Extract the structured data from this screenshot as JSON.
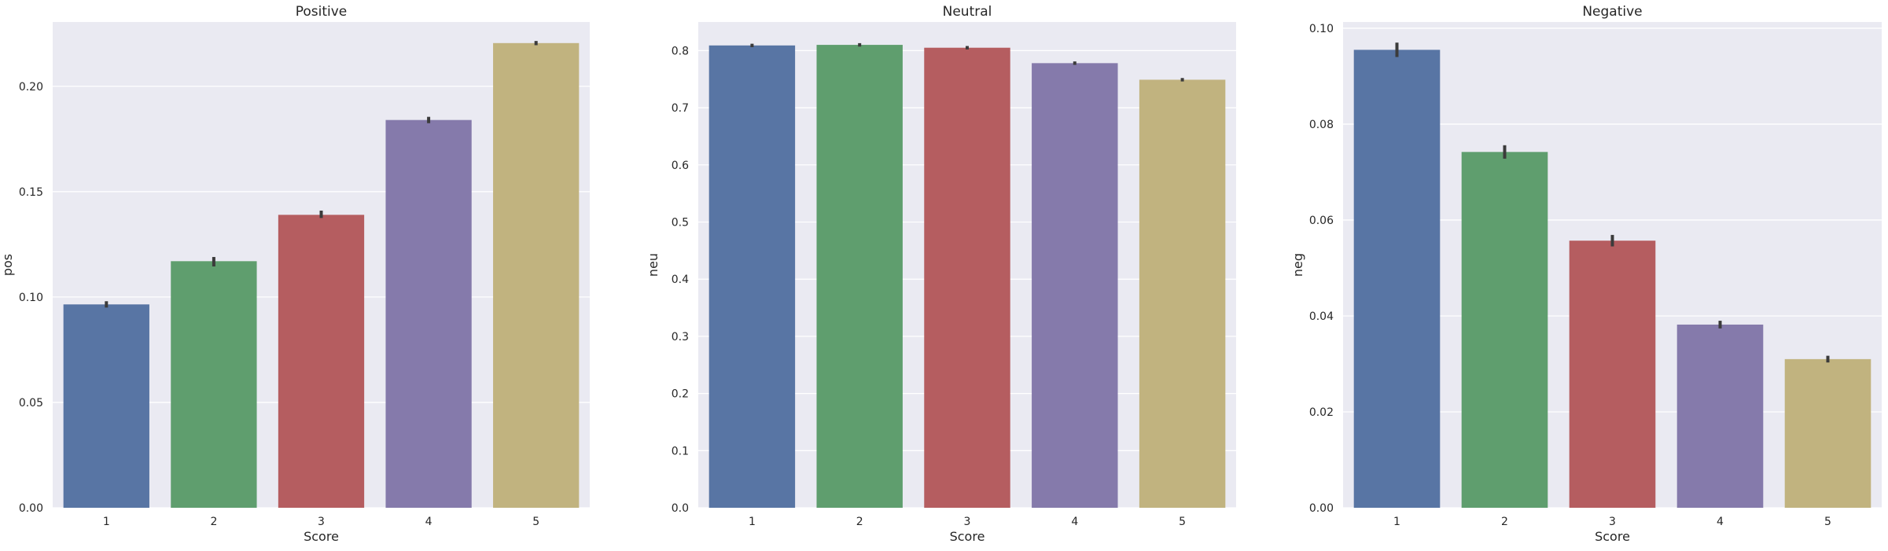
{
  "chart_data": [
    {
      "type": "bar",
      "title": "Positive",
      "xlabel": "Score",
      "ylabel": "pos",
      "categories": [
        "1",
        "2",
        "3",
        "4",
        "5"
      ],
      "values": [
        0.0965,
        0.117,
        0.139,
        0.184,
        0.2205
      ],
      "error_low": [
        0.095,
        0.1145,
        0.1375,
        0.1825,
        0.2195
      ],
      "error_high": [
        0.098,
        0.119,
        0.141,
        0.1855,
        0.2215
      ],
      "ylim": [
        0,
        0.2305
      ],
      "yticks": [
        0.0,
        0.05,
        0.1,
        0.15,
        0.2
      ],
      "ytick_labels": [
        "0.00",
        "0.05",
        "0.10",
        "0.15",
        "0.20"
      ],
      "grid": true
    },
    {
      "type": "bar",
      "title": "Neutral",
      "xlabel": "Score",
      "ylabel": "neu",
      "categories": [
        "1",
        "2",
        "3",
        "4",
        "5"
      ],
      "values": [
        0.809,
        0.81,
        0.805,
        0.778,
        0.749
      ],
      "error_low": [
        0.806,
        0.807,
        0.802,
        0.775,
        0.746
      ],
      "error_high": [
        0.812,
        0.813,
        0.808,
        0.781,
        0.752
      ],
      "ylim": [
        0,
        0.85
      ],
      "yticks": [
        0.0,
        0.1,
        0.2,
        0.3,
        0.4,
        0.5,
        0.6,
        0.7,
        0.8
      ],
      "ytick_labels": [
        "0.0",
        "0.1",
        "0.2",
        "0.3",
        "0.4",
        "0.5",
        "0.6",
        "0.7",
        "0.8"
      ],
      "grid": true
    },
    {
      "type": "bar",
      "title": "Negative",
      "xlabel": "Score",
      "ylabel": "neg",
      "categories": [
        "1",
        "2",
        "3",
        "4",
        "5"
      ],
      "values": [
        0.0955,
        0.0742,
        0.0557,
        0.0382,
        0.031
      ],
      "error_low": [
        0.094,
        0.0728,
        0.0545,
        0.0374,
        0.0303
      ],
      "error_high": [
        0.097,
        0.0756,
        0.0569,
        0.039,
        0.0317
      ],
      "ylim": [
        0,
        0.1013
      ],
      "yticks": [
        0.0,
        0.02,
        0.04,
        0.06,
        0.08,
        0.1
      ],
      "ytick_labels": [
        "0.00",
        "0.02",
        "0.04",
        "0.06",
        "0.08",
        "0.10"
      ],
      "grid": true
    }
  ],
  "colors": {
    "background": "#eaeaf2",
    "grid": "#ffffff",
    "bars": [
      "#5875a4",
      "#5f9e6e",
      "#b55d60",
      "#857aab",
      "#c1b37f"
    ],
    "error": "#3b3b3b"
  }
}
